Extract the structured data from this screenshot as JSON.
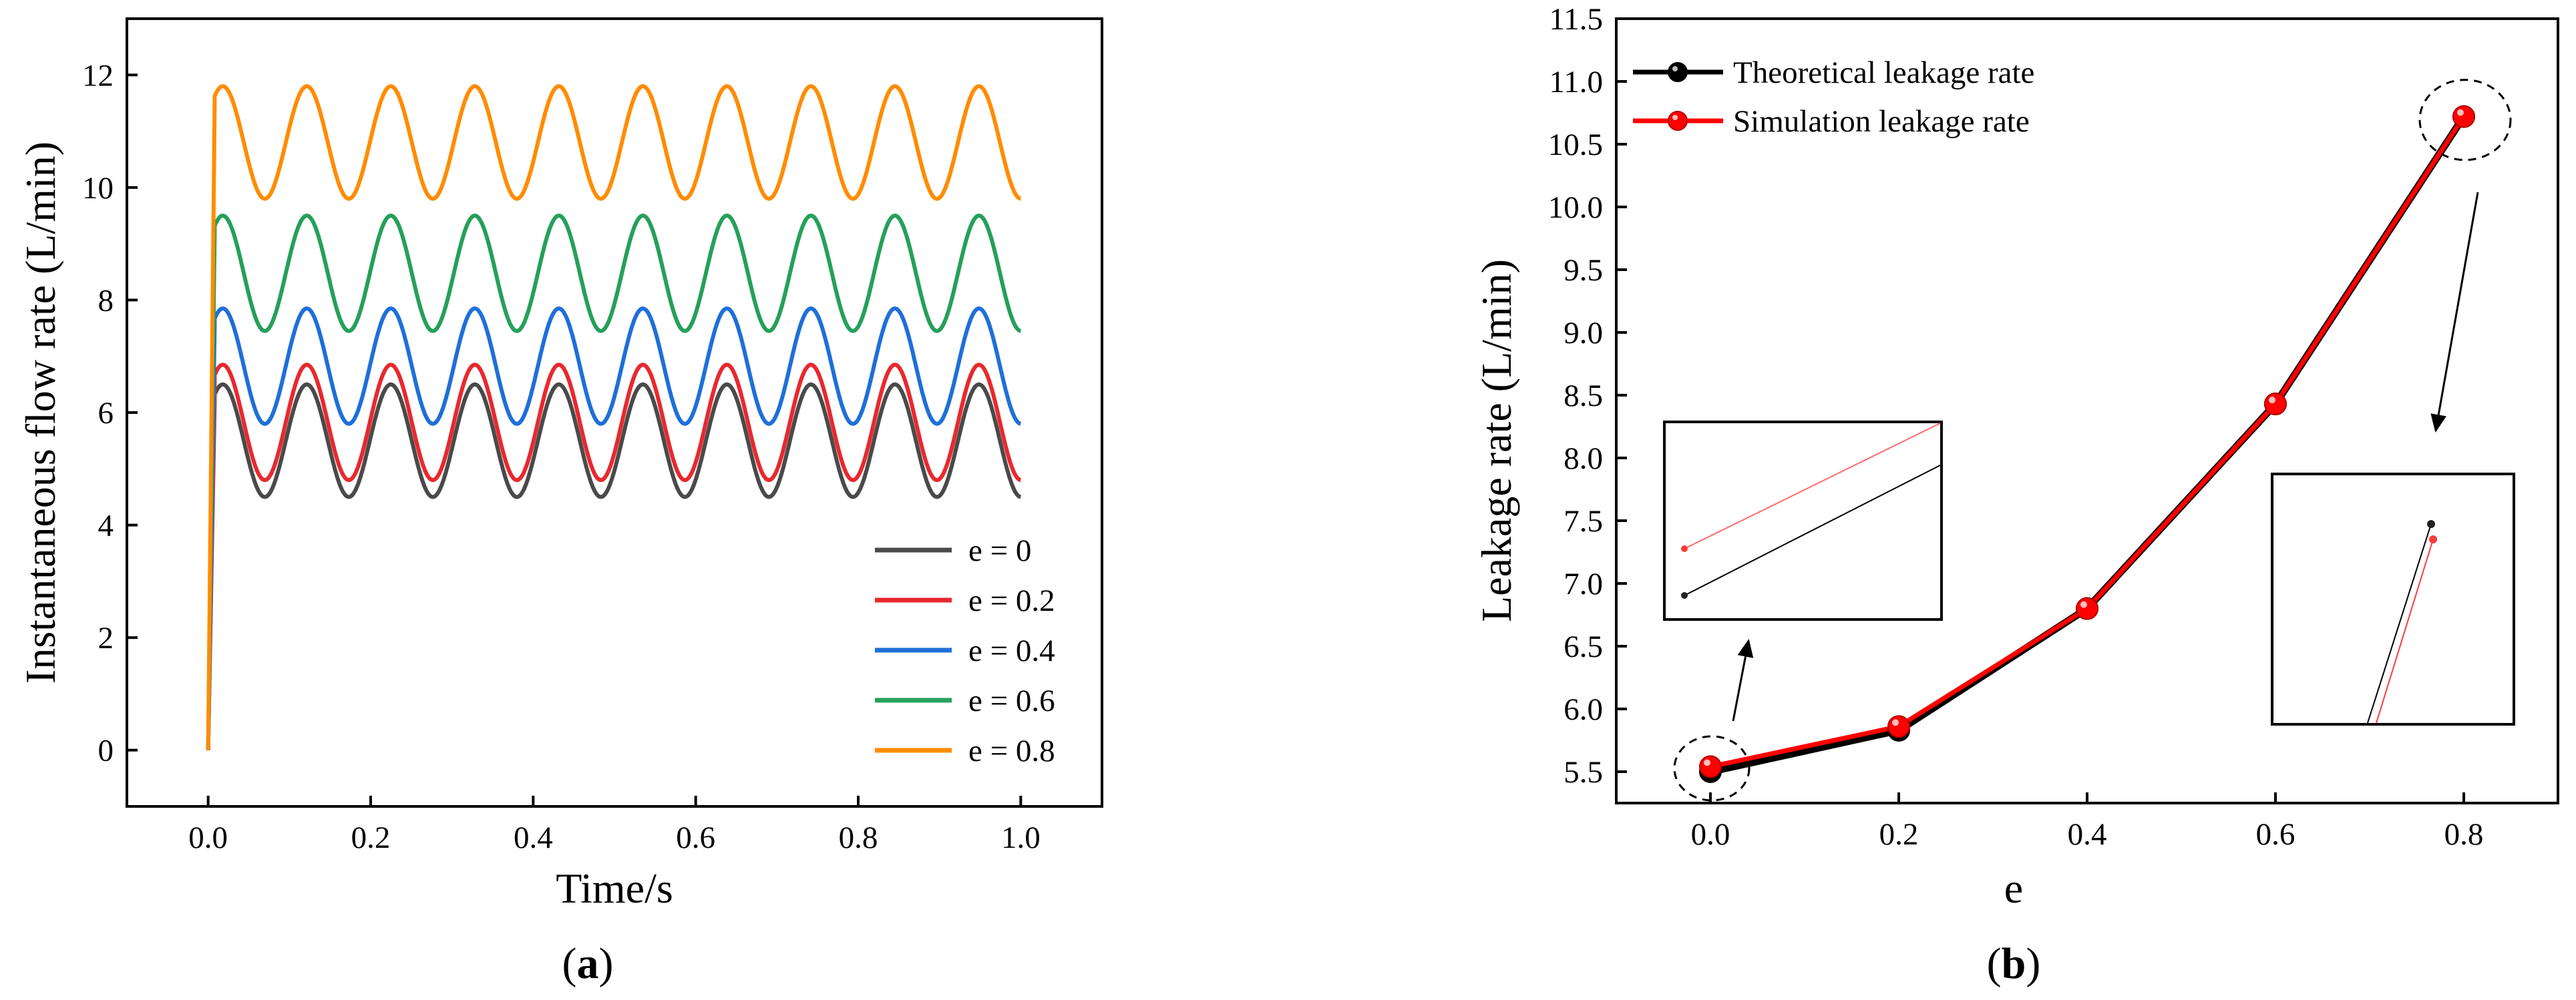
{
  "figure": {
    "caption_a": {
      "open": "(",
      "letter": "a",
      "close": ")"
    },
    "caption_b": {
      "open": "(",
      "letter": "b",
      "close": ")"
    }
  },
  "chart_data": [
    {
      "id": "a",
      "type": "line",
      "title": "",
      "xlabel": "Time/s",
      "ylabel": "Instantaneous flow rate (L/min)",
      "xlim": [
        -0.1,
        1.1
      ],
      "ylim": [
        -1,
        13
      ],
      "xticks": [
        0.0,
        0.2,
        0.4,
        0.6,
        0.8,
        1.0
      ],
      "xtick_labels": [
        "0.0",
        "0.2",
        "0.4",
        "0.6",
        "0.8",
        "1.0"
      ],
      "yticks": [
        0,
        2,
        4,
        6,
        8,
        10,
        12
      ],
      "ytick_labels": [
        "0",
        "2",
        "4",
        "6",
        "8",
        "10",
        "12"
      ],
      "grid": false,
      "legend_position": "bottom-right",
      "waveform": {
        "period_s": 0.1034,
        "startup_rise_s": 0.008,
        "end_time_s": 1.0
      },
      "series": [
        {
          "name": "e = 0",
          "color": "#4a4a4a",
          "min": 4.5,
          "max": 6.5,
          "start": 0
        },
        {
          "name": "e = 0.2",
          "color": "#e8292e",
          "min": 4.8,
          "max": 6.85,
          "start": 0
        },
        {
          "name": "e = 0.4",
          "color": "#1f6fd8",
          "min": 5.8,
          "max": 7.85,
          "start": 0
        },
        {
          "name": "e = 0.6",
          "color": "#25a05a",
          "min": 7.45,
          "max": 9.5,
          "start": 0
        },
        {
          "name": "e = 0.8",
          "color": "#ff8c00",
          "min": 9.8,
          "max": 11.8,
          "start": 0
        }
      ]
    },
    {
      "id": "b",
      "type": "line",
      "title": "",
      "xlabel": "e",
      "ylabel": "Leakage rate (L/min)",
      "xlim": [
        -0.1,
        0.9
      ],
      "ylim": [
        5.25,
        11.5
      ],
      "xticks": [
        0.0,
        0.2,
        0.4,
        0.6,
        0.8
      ],
      "xtick_labels": [
        "0.0",
        "0.2",
        "0.4",
        "0.6",
        "0.8"
      ],
      "yticks": [
        5.5,
        6.0,
        6.5,
        7.0,
        7.5,
        8.0,
        8.5,
        9.0,
        9.5,
        10.0,
        10.5,
        11.0,
        11.5
      ],
      "ytick_labels": [
        "5.5",
        "6.0",
        "6.5",
        "7.0",
        "7.5",
        "8.0",
        "8.5",
        "9.0",
        "9.5",
        "10.0",
        "10.5",
        "11.0",
        "11.5"
      ],
      "grid": false,
      "legend_position": "top-left",
      "x": [
        0.0,
        0.2,
        0.4,
        0.6,
        0.8
      ],
      "series": [
        {
          "name": "Theoretical leakage rate",
          "color": "#000000",
          "values": [
            5.5,
            5.83,
            6.8,
            8.43,
            10.72
          ]
        },
        {
          "name": "Simulation leakage rate",
          "color": "#ff0000",
          "values": [
            5.54,
            5.86,
            6.8,
            8.43,
            10.72
          ]
        }
      ],
      "annotations": [
        {
          "type": "dashed-circle-with-inset",
          "target_x": 0.0,
          "note": "zoom of e = 0.0 points: red line above black line"
        },
        {
          "type": "dashed-circle-with-inset",
          "target_x": 0.8,
          "note": "zoom of e = 0.8 points: black point slightly above red point"
        }
      ]
    }
  ]
}
